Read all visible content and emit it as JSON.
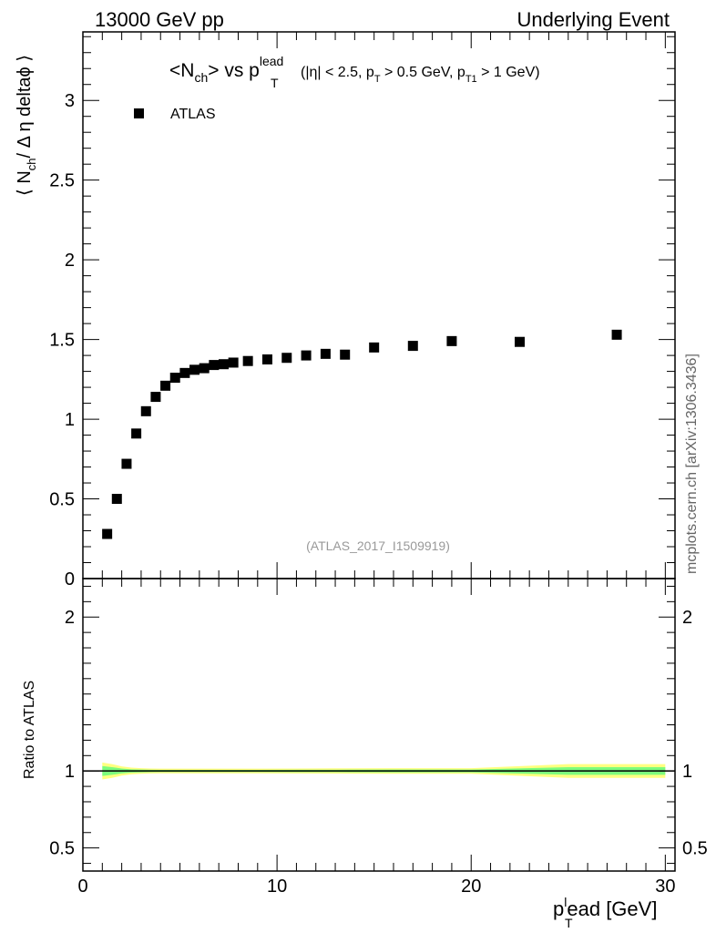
{
  "header": {
    "left": "13000 GeV pp",
    "right": "Underlying Event"
  },
  "side_label": "mcplots.cern.ch [arXiv:1306.3436]",
  "watermark": "(ATLAS_2017_I1509919)",
  "chart_data": [
    {
      "type": "scatter",
      "panel": "main",
      "title": {
        "main": "<N",
        "sub1": "ch",
        "mid": "> vs p",
        "sup": "lead",
        "sub2": "T",
        "cuts_open": "(|η| < 2.5, p",
        "cuts_sub1": "T",
        "cuts_mid": " > 0.5 GeV, p",
        "cuts_sub2": "T1",
        "cuts_close": " > 1 GeV)"
      },
      "ylabel": {
        "pre": "⟨ N",
        "sub": "ch",
        "post": "/ Δ η deltaϕ ⟩"
      },
      "legend": {
        "entries": [
          "ATLAS"
        ],
        "placement": "top-left",
        "marker_color": "#000000"
      },
      "xlim": [
        0,
        30.5
      ],
      "ylim": [
        0,
        3.43
      ],
      "y_ticks": [
        0,
        0.5,
        1,
        1.5,
        2,
        2.5,
        3
      ],
      "y_tick_labels": [
        "0",
        "0.5",
        "1",
        "1.5",
        "2",
        "2.5",
        "3"
      ],
      "series": [
        {
          "name": "ATLAS",
          "color": "#000000",
          "x": [
            1.25,
            1.75,
            2.25,
            2.75,
            3.25,
            3.75,
            4.25,
            4.75,
            5.25,
            5.75,
            6.25,
            6.75,
            7.25,
            7.75,
            8.5,
            9.5,
            10.5,
            11.5,
            12.5,
            13.5,
            15.0,
            17.0,
            19.0,
            22.5,
            27.5
          ],
          "y": [
            0.28,
            0.5,
            0.72,
            0.91,
            1.05,
            1.14,
            1.21,
            1.26,
            1.29,
            1.31,
            1.32,
            1.34,
            1.345,
            1.355,
            1.365,
            1.375,
            1.385,
            1.4,
            1.41,
            1.405,
            1.45,
            1.46,
            1.49,
            1.485,
            1.53
          ]
        }
      ]
    },
    {
      "type": "line",
      "panel": "ratio",
      "ylabel": "Ratio to ATLAS",
      "xlabel": {
        "pre": "p",
        "sub": "T",
        "sup": "l",
        "post": "ead [GeV]"
      },
      "xlim": [
        0,
        30.5
      ],
      "ylim": [
        0.35,
        2.25
      ],
      "x_ticks": [
        0,
        10,
        20,
        30
      ],
      "x_tick_labels": [
        "0",
        "10",
        "20",
        "30"
      ],
      "y_ticks": [
        0.5,
        1,
        2
      ],
      "y_tick_labels": [
        "0.5",
        "1",
        "2"
      ],
      "reference_line": 1,
      "bands": [
        {
          "name": "outer-uncertainty",
          "color": "#ffff80",
          "x": [
            1.0,
            1.5,
            2.0,
            2.5,
            3.0,
            3.5,
            4.0,
            5.0,
            7.0,
            9.0,
            11.0,
            13.0,
            16.0,
            18.0,
            20.0,
            25.0,
            30.0
          ],
          "low": [
            0.945,
            0.955,
            0.97,
            0.978,
            0.982,
            0.984,
            0.985,
            0.985,
            0.985,
            0.985,
            0.984,
            0.983,
            0.982,
            0.982,
            0.982,
            0.955,
            0.955
          ],
          "high": [
            1.055,
            1.045,
            1.03,
            1.022,
            1.018,
            1.016,
            1.015,
            1.015,
            1.015,
            1.015,
            1.016,
            1.017,
            1.018,
            1.018,
            1.018,
            1.045,
            1.045
          ]
        },
        {
          "name": "inner-uncertainty",
          "color": "#7cfc7c",
          "x": [
            1.0,
            1.5,
            2.0,
            2.5,
            3.0,
            3.5,
            4.0,
            5.0,
            7.0,
            9.0,
            11.0,
            13.0,
            16.0,
            18.0,
            20.0,
            25.0,
            30.0
          ],
          "low": [
            0.968,
            0.975,
            0.984,
            0.989,
            0.991,
            0.992,
            0.993,
            0.993,
            0.993,
            0.993,
            0.992,
            0.992,
            0.991,
            0.991,
            0.991,
            0.975,
            0.975
          ],
          "high": [
            1.032,
            1.025,
            1.016,
            1.011,
            1.009,
            1.008,
            1.007,
            1.007,
            1.007,
            1.007,
            1.008,
            1.008,
            1.009,
            1.009,
            1.009,
            1.025,
            1.025
          ]
        }
      ]
    }
  ]
}
